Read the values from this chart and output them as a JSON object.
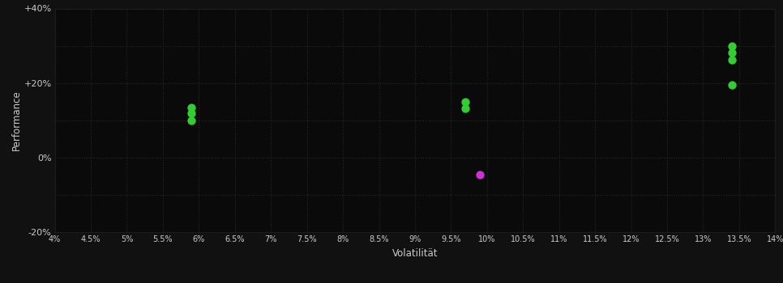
{
  "background_color": "#111111",
  "plot_bg_color": "#0a0a0a",
  "grid_color": "#2a2a2a",
  "text_color": "#cccccc",
  "xlabel": "Volatilität",
  "ylabel": "Performance",
  "xlim": [
    0.04,
    0.14
  ],
  "ylim": [
    -0.2,
    0.4
  ],
  "xticks": [
    0.04,
    0.045,
    0.05,
    0.055,
    0.06,
    0.065,
    0.07,
    0.075,
    0.08,
    0.085,
    0.09,
    0.095,
    0.1,
    0.105,
    0.11,
    0.115,
    0.12,
    0.125,
    0.13,
    0.135,
    0.14
  ],
  "yticks": [
    -0.2,
    -0.1,
    0.0,
    0.1,
    0.2,
    0.3,
    0.4
  ],
  "ytick_labels": [
    "-20%",
    "",
    "0%",
    "",
    "+20%",
    "",
    "+40%"
  ],
  "green_points": [
    [
      0.059,
      0.135
    ],
    [
      0.059,
      0.118
    ],
    [
      0.059,
      0.1
    ],
    [
      0.097,
      0.15
    ],
    [
      0.097,
      0.133
    ],
    [
      0.134,
      0.3
    ],
    [
      0.134,
      0.282
    ],
    [
      0.134,
      0.262
    ],
    [
      0.134,
      0.195
    ]
  ],
  "magenta_points": [
    [
      0.099,
      -0.047
    ]
  ],
  "green_color": "#33cc33",
  "magenta_color": "#cc33cc",
  "marker_size": 55
}
